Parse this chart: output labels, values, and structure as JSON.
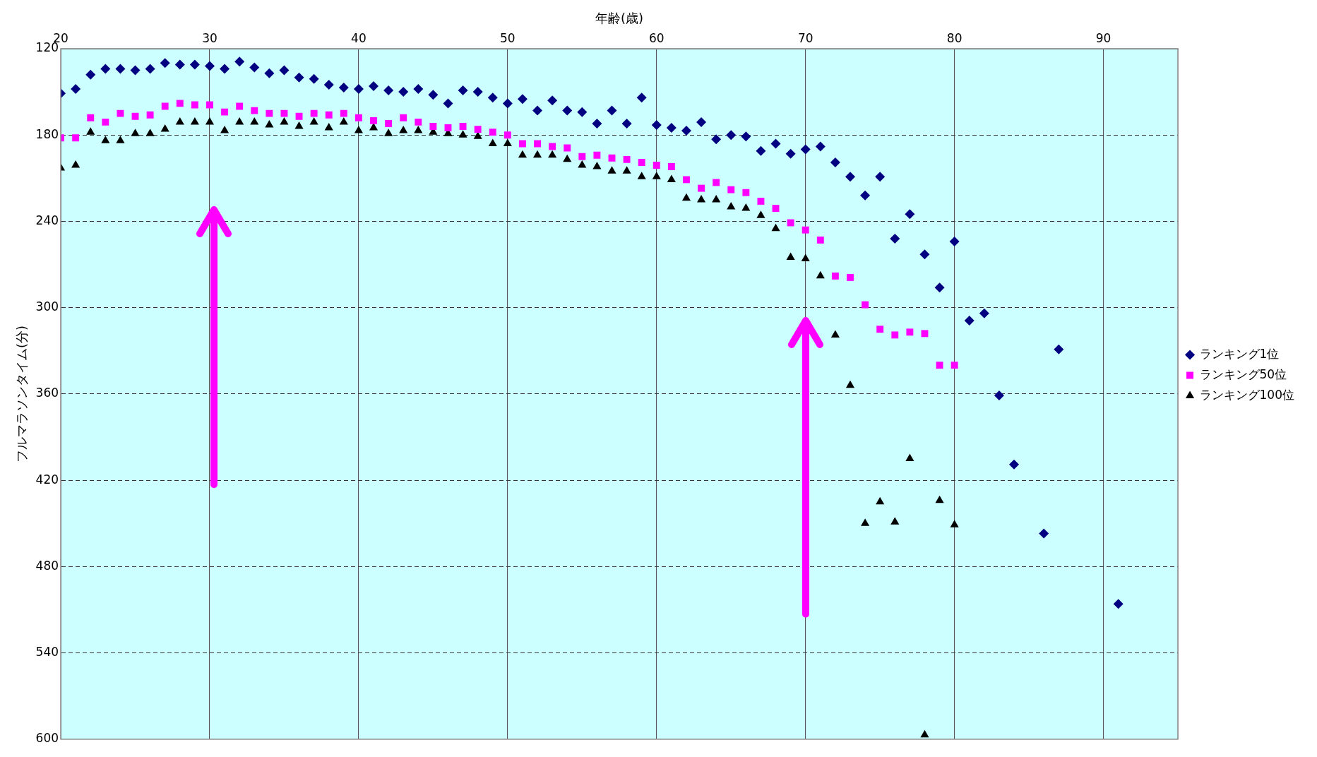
{
  "chart_data": {
    "type": "scatter",
    "xlabel": "年齢(歳)",
    "ylabel": "フルマラソンタイム(分)",
    "xlim": [
      20,
      95
    ],
    "xticks": [
      20,
      30,
      40,
      50,
      60,
      70,
      80,
      90
    ],
    "ylim": [
      600,
      120
    ],
    "yticks": [
      120,
      180,
      240,
      300,
      360,
      420,
      480,
      540,
      600
    ],
    "grid": true,
    "legend": "right",
    "series": [
      {
        "name": "ランキング1位",
        "color": "#000080",
        "marker": "diamond",
        "x": [
          20,
          21,
          22,
          23,
          24,
          25,
          26,
          27,
          28,
          29,
          30,
          31,
          32,
          33,
          34,
          35,
          36,
          37,
          38,
          39,
          40,
          41,
          42,
          43,
          44,
          45,
          46,
          47,
          48,
          49,
          50,
          51,
          52,
          53,
          54,
          55,
          56,
          57,
          58,
          59,
          60,
          61,
          62,
          63,
          64,
          65,
          66,
          67,
          68,
          69,
          70,
          71,
          72,
          73,
          74,
          75,
          76,
          77,
          78,
          79,
          80,
          81,
          82,
          83,
          84,
          86,
          87,
          91
        ],
        "values": [
          151,
          148,
          138,
          134,
          134,
          135,
          134,
          130,
          131,
          131,
          132,
          134,
          129,
          133,
          137,
          135,
          140,
          141,
          145,
          147,
          148,
          146,
          149,
          150,
          148,
          152,
          158,
          149,
          150,
          154,
          158,
          155,
          163,
          156,
          163,
          164,
          172,
          163,
          172,
          154,
          173,
          175,
          177,
          171,
          183,
          180,
          181,
          191,
          186,
          193,
          190,
          188,
          199,
          209,
          222,
          209,
          252,
          235,
          263,
          286,
          254,
          309,
          304,
          361,
          409,
          457,
          329,
          506
        ]
      },
      {
        "name": "ランキング50位",
        "color": "#ff00ff",
        "marker": "square",
        "x": [
          20,
          21,
          22,
          23,
          24,
          25,
          26,
          27,
          28,
          29,
          30,
          31,
          32,
          33,
          34,
          35,
          36,
          37,
          38,
          39,
          40,
          41,
          42,
          43,
          44,
          45,
          46,
          47,
          48,
          49,
          50,
          51,
          52,
          53,
          54,
          55,
          56,
          57,
          58,
          59,
          60,
          61,
          62,
          63,
          64,
          65,
          66,
          67,
          68,
          69,
          70,
          71,
          72,
          73,
          74,
          75,
          76,
          77,
          78,
          79,
          80
        ],
        "values": [
          182,
          182,
          168,
          171,
          165,
          167,
          166,
          160,
          158,
          159,
          159,
          164,
          160,
          163,
          165,
          165,
          167,
          165,
          166,
          165,
          168,
          170,
          172,
          168,
          171,
          174,
          175,
          174,
          176,
          178,
          180,
          186,
          186,
          188,
          189,
          195,
          194,
          196,
          197,
          199,
          201,
          202,
          211,
          217,
          213,
          218,
          220,
          226,
          231,
          241,
          246,
          253,
          278,
          279,
          298,
          315,
          319,
          317,
          318,
          340,
          340
        ]
      },
      {
        "name": "ランキング100位",
        "color": "#000000",
        "marker": "triangle",
        "x": [
          20,
          21,
          22,
          23,
          24,
          25,
          26,
          27,
          28,
          29,
          30,
          31,
          32,
          33,
          34,
          35,
          36,
          37,
          38,
          39,
          40,
          41,
          42,
          43,
          44,
          45,
          46,
          47,
          48,
          49,
          50,
          51,
          52,
          53,
          54,
          55,
          56,
          57,
          58,
          59,
          60,
          61,
          62,
          63,
          64,
          65,
          66,
          67,
          68,
          69,
          70,
          71,
          72,
          73,
          74,
          75,
          76,
          77,
          78,
          79,
          80
        ],
        "values": [
          203,
          201,
          178,
          184,
          184,
          179,
          179,
          176,
          171,
          171,
          171,
          177,
          171,
          171,
          173,
          171,
          174,
          171,
          175,
          171,
          177,
          175,
          179,
          177,
          177,
          178,
          179,
          180,
          181,
          186,
          186,
          194,
          194,
          194,
          197,
          201,
          202,
          205,
          205,
          209,
          209,
          211,
          224,
          225,
          225,
          230,
          231,
          236,
          245,
          265,
          266,
          278,
          319,
          354,
          450,
          435,
          449,
          405,
          597,
          434,
          451
        ]
      }
    ]
  }
}
